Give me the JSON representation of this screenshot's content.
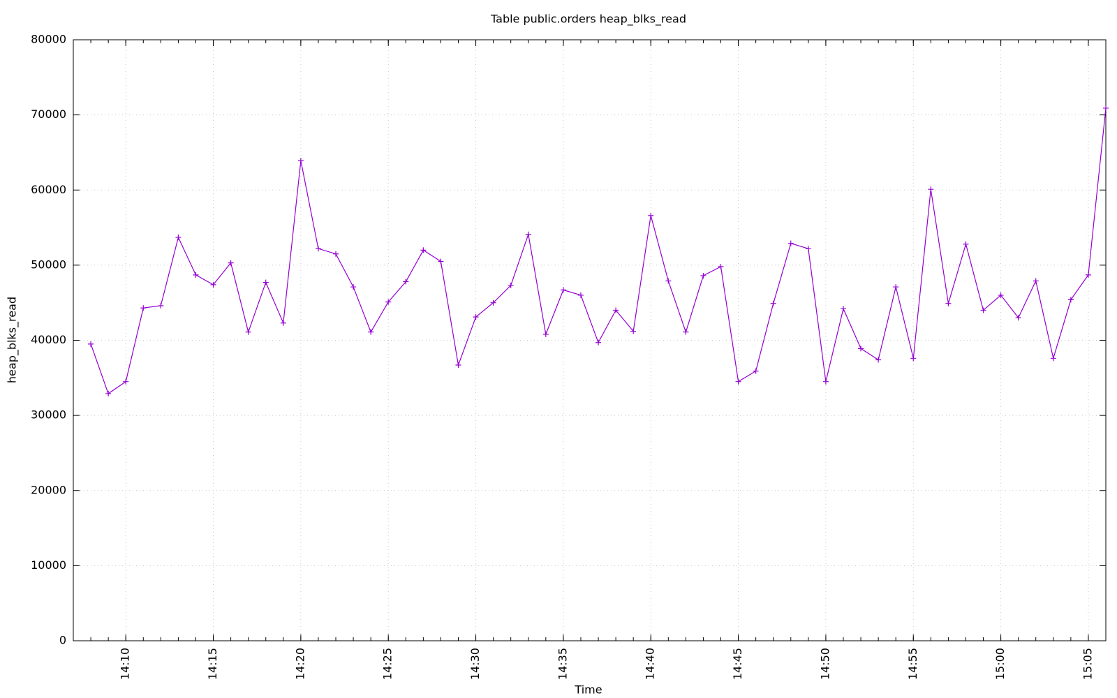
{
  "chart_data": {
    "type": "line",
    "title": "Table public.orders heap_blks_read",
    "x_label": "Time",
    "y_label": "heap_blks_read",
    "x": [
      "14:08",
      "14:09",
      "14:10",
      "14:11",
      "14:12",
      "14:13",
      "14:14",
      "14:15",
      "14:16",
      "14:17",
      "14:18",
      "14:19",
      "14:20",
      "14:21",
      "14:22",
      "14:23",
      "14:24",
      "14:25",
      "14:26",
      "14:27",
      "14:28",
      "14:29",
      "14:30",
      "14:31",
      "14:32",
      "14:33",
      "14:34",
      "14:35",
      "14:36",
      "14:37",
      "14:38",
      "14:39",
      "14:40",
      "14:41",
      "14:42",
      "14:43",
      "14:44",
      "14:45",
      "14:46",
      "14:47",
      "14:48",
      "14:49",
      "14:50",
      "14:51",
      "14:52",
      "14:53",
      "14:54",
      "14:55",
      "14:56",
      "14:57",
      "14:58",
      "14:59",
      "15:00",
      "15:01",
      "15:02",
      "15:03",
      "15:04",
      "15:05",
      "15:06"
    ],
    "series": [
      {
        "name": "heap_blks_read",
        "color": "#9400d3",
        "values": [
          39500,
          32900,
          34500,
          44300,
          44600,
          53700,
          48700,
          47400,
          50300,
          41100,
          47700,
          42300,
          63900,
          52200,
          51500,
          47100,
          41100,
          45100,
          47800,
          52000,
          50500,
          36700,
          43100,
          45000,
          47300,
          54100,
          40800,
          46700,
          46000,
          39700,
          44000,
          41200,
          56600,
          47900,
          41100,
          48600,
          49800,
          34500,
          35900,
          44900,
          52900,
          52200,
          34500,
          44200,
          38900,
          37400,
          47100,
          37600,
          60100,
          44900,
          52800,
          44000,
          46000,
          43000,
          47900,
          37600,
          45400,
          48700,
          70900
        ]
      }
    ],
    "xlim": [
      "14:07",
      "15:06"
    ],
    "xticks": [
      "14:10",
      "14:15",
      "14:20",
      "14:25",
      "14:30",
      "14:35",
      "14:40",
      "14:45",
      "14:50",
      "14:55",
      "15:00",
      "15:05"
    ],
    "ylim": [
      0,
      80000
    ],
    "yticks": [
      0,
      10000,
      20000,
      30000,
      40000,
      50000,
      60000,
      70000,
      80000
    ],
    "grid": true
  }
}
